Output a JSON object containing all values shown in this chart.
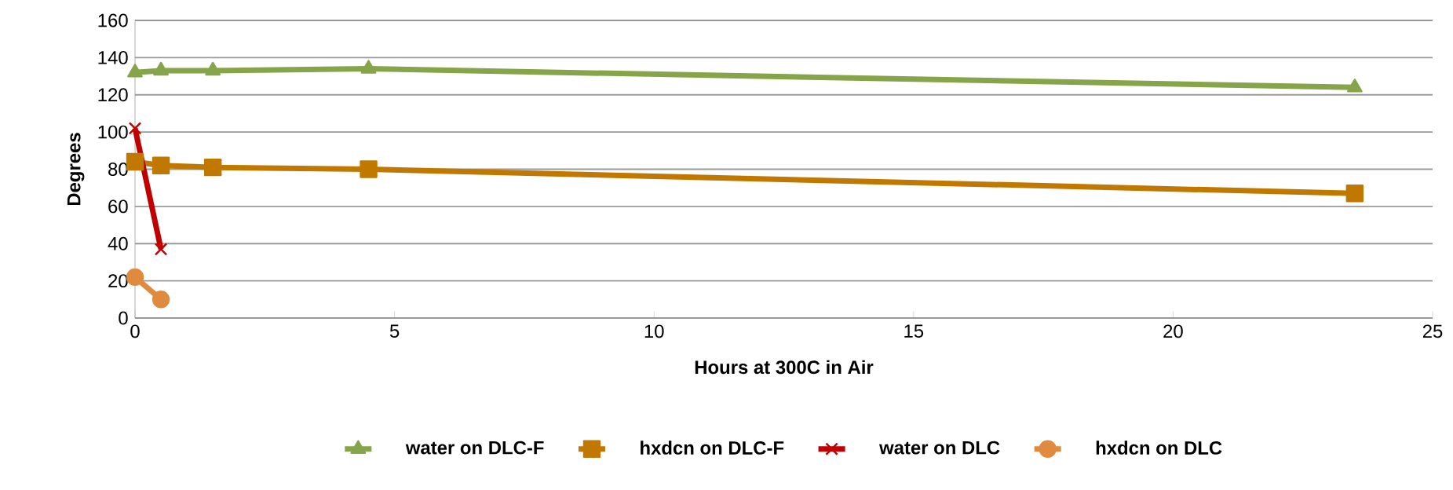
{
  "chart_data": {
    "type": "line",
    "xlabel": "Hours at 300C in Air",
    "ylabel": "Degrees",
    "xlim": [
      0,
      25
    ],
    "xticks": [
      0,
      5,
      10,
      15,
      20,
      25
    ],
    "ylim": [
      0,
      160
    ],
    "yticks": [
      0,
      20,
      40,
      60,
      80,
      100,
      120,
      140,
      160
    ],
    "grid": "y",
    "legend": "bottom",
    "series": [
      {
        "name": "water on DLC-F",
        "color": "#86a44a",
        "marker": "triangle",
        "x": [
          0,
          0.5,
          1.5,
          4.5,
          23.5
        ],
        "values": [
          132,
          133,
          133,
          134,
          124
        ]
      },
      {
        "name": "hxdcn on DLC-F",
        "color": "#c07800",
        "marker": "square",
        "x": [
          0,
          0.5,
          1.5,
          4.5,
          23.5
        ],
        "values": [
          84,
          82,
          81,
          80,
          67
        ]
      },
      {
        "name": "water on DLC",
        "color": "#c00000",
        "marker": "cross",
        "x": [
          0,
          0.5
        ],
        "values": [
          102,
          37
        ]
      },
      {
        "name": "hxdcn on DLC",
        "color": "#e08a40",
        "marker": "circle",
        "x": [
          0,
          0.5
        ],
        "values": [
          22,
          10
        ]
      }
    ]
  }
}
